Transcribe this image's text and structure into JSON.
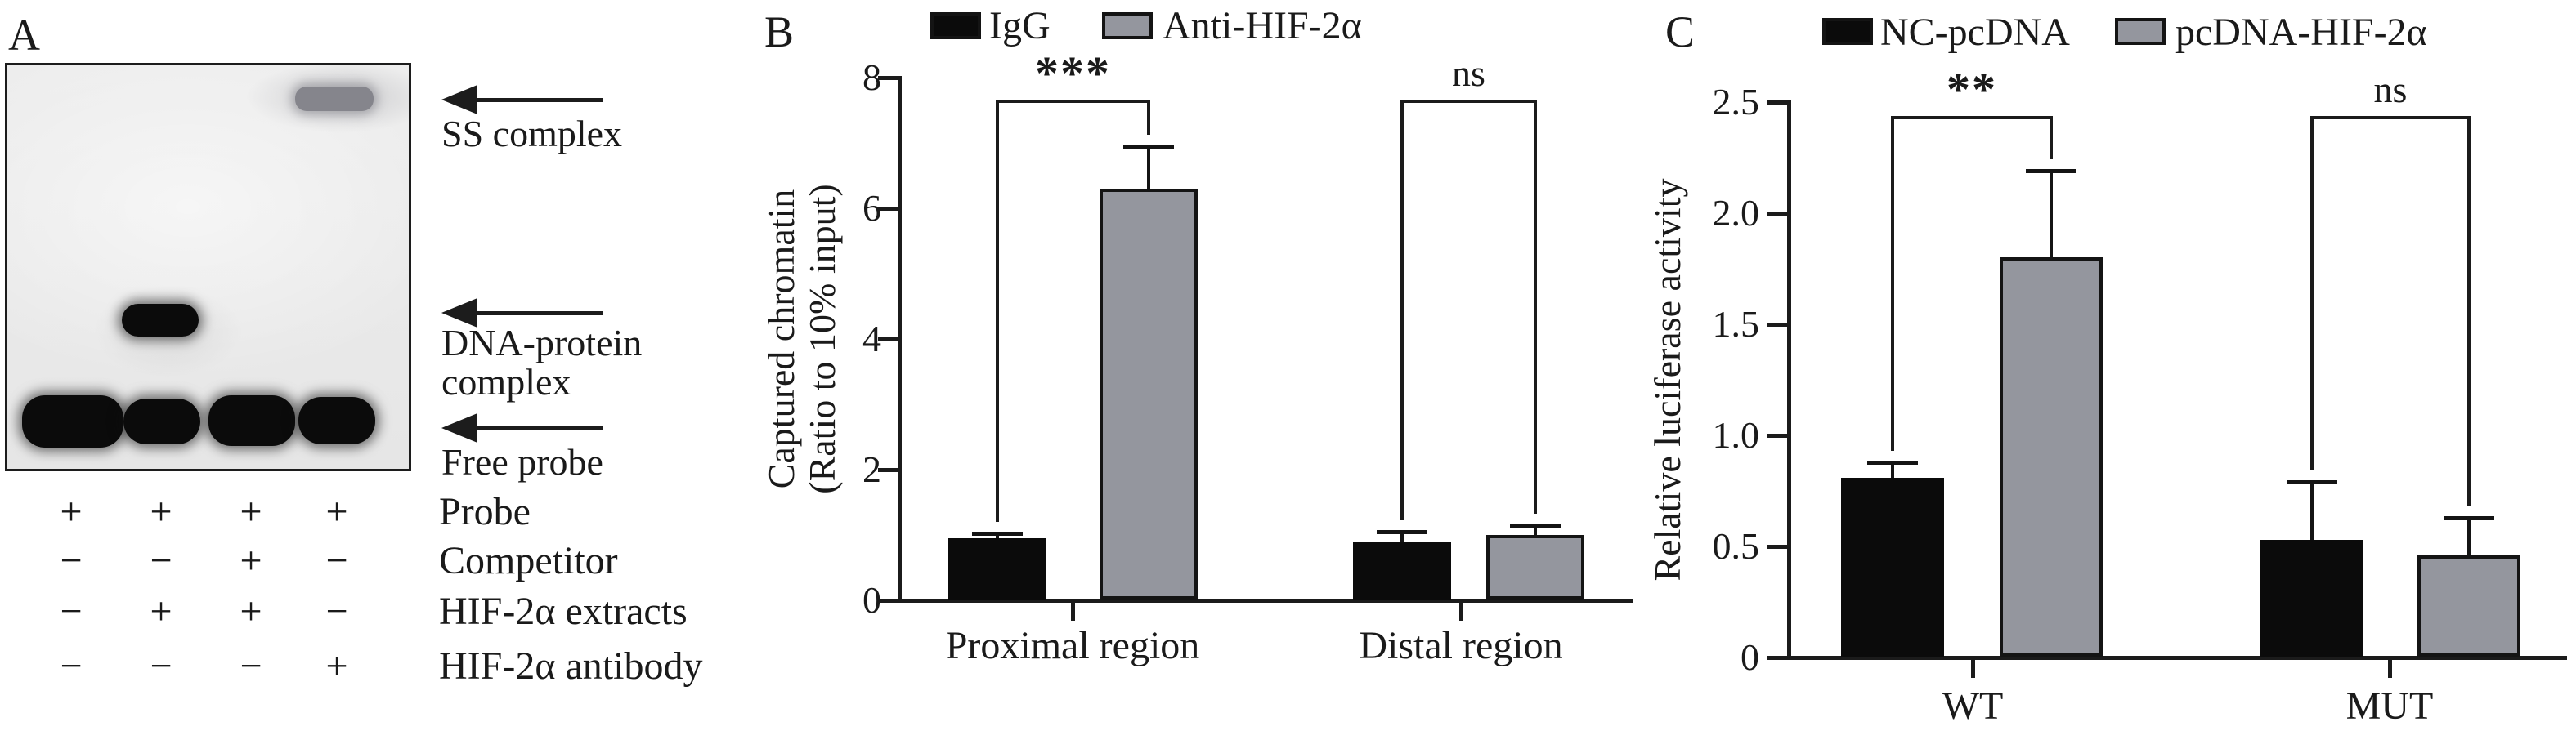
{
  "figure_type": "scientific-figure-emsa-chip-luciferase",
  "panel_a": {
    "label": "A",
    "annotations": {
      "ss": "SS complex",
      "dna_protein": "DNA-protein complex",
      "free_probe": "Free probe"
    },
    "gel": {
      "lanes": 4,
      "bands": [
        {
          "name": "ss-complex",
          "lane": 4
        },
        {
          "name": "dna-protein-complex",
          "lane": 2
        },
        {
          "name": "free-probe",
          "lane": 1
        },
        {
          "name": "free-probe",
          "lane": 2
        },
        {
          "name": "free-probe",
          "lane": 3
        },
        {
          "name": "free-probe",
          "lane": 4
        }
      ]
    },
    "conditions": [
      {
        "label": "Probe",
        "values": [
          "+",
          "+",
          "+",
          "+"
        ]
      },
      {
        "label": "Competitor",
        "values": [
          "−",
          "−",
          "+",
          "−"
        ]
      },
      {
        "label": "HIF-2α extracts",
        "values": [
          "−",
          "+",
          "+",
          "−"
        ]
      },
      {
        "label": "HIF-2α antibody",
        "values": [
          "−",
          "−",
          "−",
          "+"
        ]
      }
    ]
  },
  "chart_data": [
    {
      "type": "bar",
      "panel_label": "B",
      "title": "",
      "ylabel_lines": [
        "Captured chromatin",
        "(Ratio to 10% input)"
      ],
      "categories": [
        "Proximal region",
        "Distal region"
      ],
      "series": [
        {
          "name": "IgG",
          "color": "#0b0b0b",
          "values": [
            0.95,
            0.9
          ],
          "errors": [
            0.08,
            0.15
          ]
        },
        {
          "name": "Anti-HIF-2α",
          "color": "#94969e",
          "values": [
            6.3,
            1.0
          ],
          "errors": [
            0.65,
            0.15
          ]
        }
      ],
      "ylim": [
        0,
        8
      ],
      "yticks": [
        "0",
        "2",
        "4",
        "6",
        "8"
      ],
      "significance": [
        {
          "category": "Proximal region",
          "label": "***"
        },
        {
          "category": "Distal region",
          "label": "ns"
        }
      ],
      "legend_position": "top",
      "grid": false
    },
    {
      "type": "bar",
      "panel_label": "C",
      "title": "",
      "ylabel_lines": [
        "Relative luciferase activity"
      ],
      "categories": [
        "WT",
        "MUT"
      ],
      "series": [
        {
          "name": "NC-pcDNA",
          "color": "#0b0b0b",
          "values": [
            0.81,
            0.53
          ],
          "errors": [
            0.07,
            0.26
          ]
        },
        {
          "name": "pcDNA-HIF-2α",
          "color": "#94969e",
          "values": [
            1.8,
            0.46
          ],
          "errors": [
            0.39,
            0.17
          ]
        }
      ],
      "ylim": [
        0,
        2.5
      ],
      "yticks": [
        "0",
        "0.5",
        "1.0",
        "1.5",
        "2.0",
        "2.5"
      ],
      "significance": [
        {
          "category": "WT",
          "label": "**"
        },
        {
          "category": "MUT",
          "label": "ns"
        }
      ],
      "legend_position": "top",
      "grid": false
    }
  ],
  "colors": {
    "black_series": "#0b0b0b",
    "gray_series": "#94969e",
    "axis": "#1b1b1b",
    "background": "#ffffff"
  }
}
